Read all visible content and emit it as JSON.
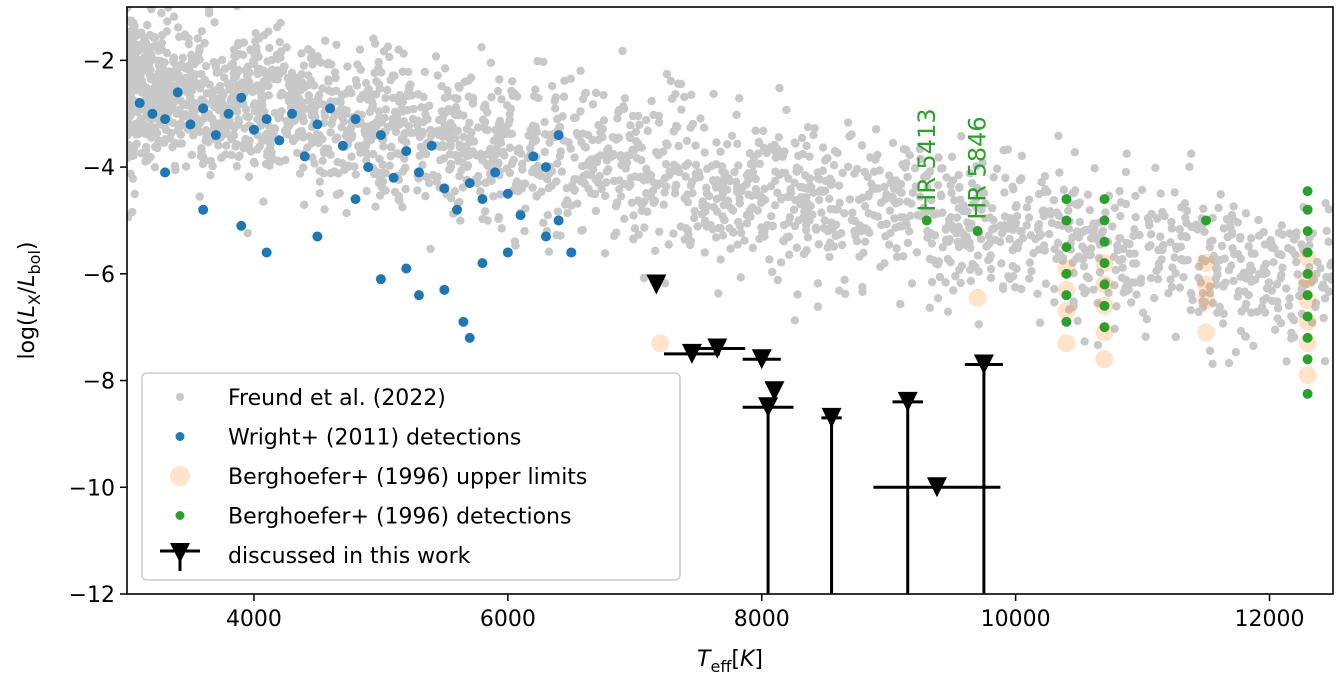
{
  "chart_data": {
    "type": "scatter",
    "xlabel": "T_eff[K]",
    "ylabel": "log(L_X/L_bol)",
    "xlim": [
      3000,
      12500
    ],
    "ylim": [
      -12,
      -1
    ],
    "x_ticks": [
      4000,
      6000,
      8000,
      10000,
      12000
    ],
    "x_tick_labels": [
      "4000",
      "6000",
      "8000",
      "10000",
      "12000"
    ],
    "y_ticks": [
      -12,
      -10,
      -8,
      -6,
      -4,
      -2
    ],
    "y_tick_labels": [
      "−12",
      "−10",
      "−8",
      "−6",
      "−4",
      "−2"
    ],
    "grid": false,
    "legend_position": "lower-left",
    "series": [
      {
        "name": "Freund et al. (2022)",
        "color": "#c8c8c8",
        "marker": "small-circle",
        "trend": {
          "x_start": 3000,
          "y_start": -2.5,
          "x_end": 12500,
          "y_end": -6.2,
          "scatter_sigma": 0.7
        },
        "count": 2600
      },
      {
        "name": "Wright+ (2011) detections",
        "color": "#1f77b4",
        "marker": "circle",
        "points": [
          [
            3100,
            -2.8
          ],
          [
            3200,
            -3.0
          ],
          [
            3300,
            -3.1
          ],
          [
            3400,
            -2.6
          ],
          [
            3500,
            -3.2
          ],
          [
            3600,
            -2.9
          ],
          [
            3700,
            -3.4
          ],
          [
            3800,
            -3.0
          ],
          [
            3900,
            -2.7
          ],
          [
            4000,
            -3.3
          ],
          [
            4100,
            -3.1
          ],
          [
            4200,
            -3.5
          ],
          [
            4300,
            -3.0
          ],
          [
            4400,
            -3.8
          ],
          [
            4500,
            -3.2
          ],
          [
            4600,
            -2.9
          ],
          [
            4700,
            -3.6
          ],
          [
            4800,
            -3.1
          ],
          [
            4900,
            -4.0
          ],
          [
            5000,
            -3.4
          ],
          [
            5100,
            -4.2
          ],
          [
            5200,
            -3.7
          ],
          [
            5300,
            -4.1
          ],
          [
            5400,
            -3.6
          ],
          [
            5500,
            -4.4
          ],
          [
            5600,
            -4.8
          ],
          [
            5700,
            -4.3
          ],
          [
            5800,
            -4.6
          ],
          [
            5900,
            -4.1
          ],
          [
            6000,
            -4.5
          ],
          [
            6100,
            -4.9
          ],
          [
            6200,
            -3.8
          ],
          [
            6300,
            -4.0
          ],
          [
            6400,
            -3.4
          ],
          [
            6500,
            -5.6
          ],
          [
            3300,
            -4.1
          ],
          [
            3600,
            -4.8
          ],
          [
            3900,
            -5.1
          ],
          [
            4100,
            -5.6
          ],
          [
            4500,
            -5.3
          ],
          [
            4800,
            -4.6
          ],
          [
            5000,
            -6.1
          ],
          [
            5200,
            -5.9
          ],
          [
            5300,
            -6.4
          ],
          [
            5500,
            -6.3
          ],
          [
            5650,
            -6.9
          ],
          [
            5700,
            -7.2
          ],
          [
            5800,
            -5.8
          ],
          [
            6000,
            -5.6
          ],
          [
            6300,
            -5.3
          ],
          [
            6400,
            -5.0
          ]
        ]
      },
      {
        "name": "Berghoefer+ (1996) upper limits",
        "color": "#ff7f0e",
        "marker": "large-faint-circle",
        "points": [
          [
            7200,
            -7.3
          ],
          [
            9700,
            -6.45
          ],
          [
            10400,
            -5.9
          ],
          [
            10400,
            -6.3
          ],
          [
            10400,
            -6.7
          ],
          [
            10400,
            -7.3
          ],
          [
            10700,
            -5.8
          ],
          [
            10700,
            -6.2
          ],
          [
            10700,
            -6.6
          ],
          [
            10700,
            -7.1
          ],
          [
            10700,
            -7.6
          ],
          [
            11500,
            -5.8
          ],
          [
            11500,
            -6.2
          ],
          [
            11500,
            -6.5
          ],
          [
            11500,
            -7.1
          ],
          [
            12300,
            -5.7
          ],
          [
            12300,
            -6.1
          ],
          [
            12300,
            -6.5
          ],
          [
            12300,
            -6.9
          ],
          [
            12300,
            -7.3
          ],
          [
            12300,
            -7.9
          ]
        ]
      },
      {
        "name": "Berghoefer+ (1996) detections",
        "color": "#2ca02c",
        "marker": "circle",
        "points": [
          [
            9300,
            -5.0
          ],
          [
            9700,
            -5.2
          ],
          [
            10400,
            -4.6
          ],
          [
            10400,
            -5.0
          ],
          [
            10400,
            -5.5
          ],
          [
            10400,
            -6.0
          ],
          [
            10400,
            -6.4
          ],
          [
            10400,
            -6.9
          ],
          [
            10700,
            -4.6
          ],
          [
            10700,
            -5.0
          ],
          [
            10700,
            -5.4
          ],
          [
            10700,
            -5.8
          ],
          [
            10700,
            -6.2
          ],
          [
            10700,
            -6.6
          ],
          [
            10700,
            -7.0
          ],
          [
            11500,
            -5.0
          ],
          [
            12300,
            -4.45
          ],
          [
            12300,
            -4.8
          ],
          [
            12300,
            -5.2
          ],
          [
            12300,
            -5.6
          ],
          [
            12300,
            -6.0
          ],
          [
            12300,
            -6.4
          ],
          [
            12300,
            -6.8
          ],
          [
            12300,
            -7.2
          ],
          [
            12300,
            -7.6
          ],
          [
            12300,
            -8.25
          ]
        ]
      },
      {
        "name": "discussed in this work",
        "color": "#000000",
        "marker": "down-triangle",
        "points": [
          {
            "x": 7170,
            "y": -6.2,
            "xerr": 0,
            "ylow": -6.2
          },
          {
            "x": 7450,
            "y": -7.5,
            "xerr": 220,
            "ylow": -7.5
          },
          {
            "x": 7650,
            "y": -7.4,
            "xerr": 220,
            "ylow": -7.4
          },
          {
            "x": 8000,
            "y": -7.6,
            "xerr": 150,
            "ylow": -7.6
          },
          {
            "x": 8100,
            "y": -8.2,
            "xerr": 0,
            "ylow": -8.2
          },
          {
            "x": 8050,
            "y": -8.5,
            "xerr": 200,
            "ylow": -12
          },
          {
            "x": 8550,
            "y": -8.7,
            "xerr": 80,
            "ylow": -12
          },
          {
            "x": 9150,
            "y": -8.4,
            "xerr": 120,
            "ylow": -12
          },
          {
            "x": 9380,
            "y": -10.0,
            "xerr": 500,
            "ylow": -10.0
          },
          {
            "x": 9750,
            "y": -7.7,
            "xerr": 150,
            "ylow": -12
          }
        ]
      }
    ],
    "annotations": [
      {
        "text": "HR 5413",
        "x": 9300,
        "y": -4.95,
        "color": "#2ca02c",
        "rotation": -90
      },
      {
        "text": "HR 5846",
        "x": 9700,
        "y": -5.1,
        "color": "#2ca02c",
        "rotation": -90
      }
    ]
  }
}
